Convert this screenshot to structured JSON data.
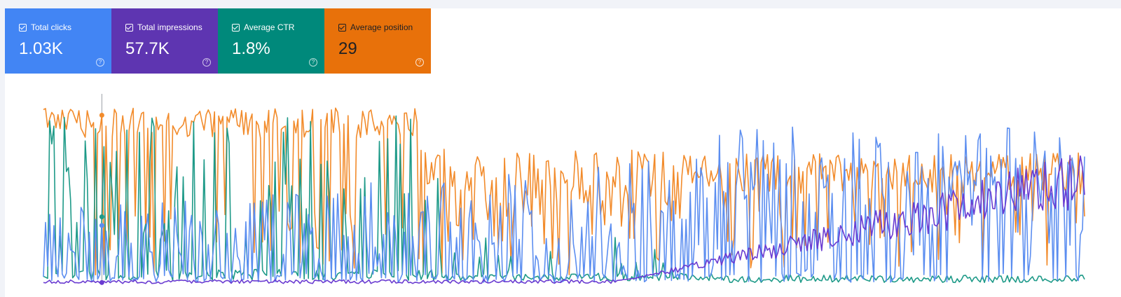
{
  "cards": [
    {
      "key": "clicks",
      "label": "Total clicks",
      "value": "1.03K",
      "color": "#4285f4",
      "text_color": "#ffffff",
      "checked": true
    },
    {
      "key": "impressions",
      "label": "Total impressions",
      "value": "57.7K",
      "color": "#5e35b1",
      "text_color": "#ffffff",
      "checked": true
    },
    {
      "key": "ctr",
      "label": "Average CTR",
      "value": "1.8%",
      "color": "#00897b",
      "text_color": "#ffffff",
      "checked": true
    },
    {
      "key": "position",
      "label": "Average position",
      "value": "29",
      "color": "#e8710a",
      "text_color": "#202124",
      "checked": true
    }
  ],
  "help_glyph": "?",
  "chart_data": {
    "type": "line",
    "x_range": [
      0,
      499
    ],
    "y_range": [
      0,
      1
    ],
    "grid": false,
    "hover_index": 28,
    "series": [
      {
        "key": "position",
        "color": "#f28b2b",
        "values": []
      },
      {
        "key": "ctr",
        "color": "#1e9a88",
        "values": []
      },
      {
        "key": "clicks",
        "color": "#5c8ef0",
        "values": []
      },
      {
        "key": "impressions",
        "color": "#6a3bd1",
        "values": []
      }
    ]
  }
}
